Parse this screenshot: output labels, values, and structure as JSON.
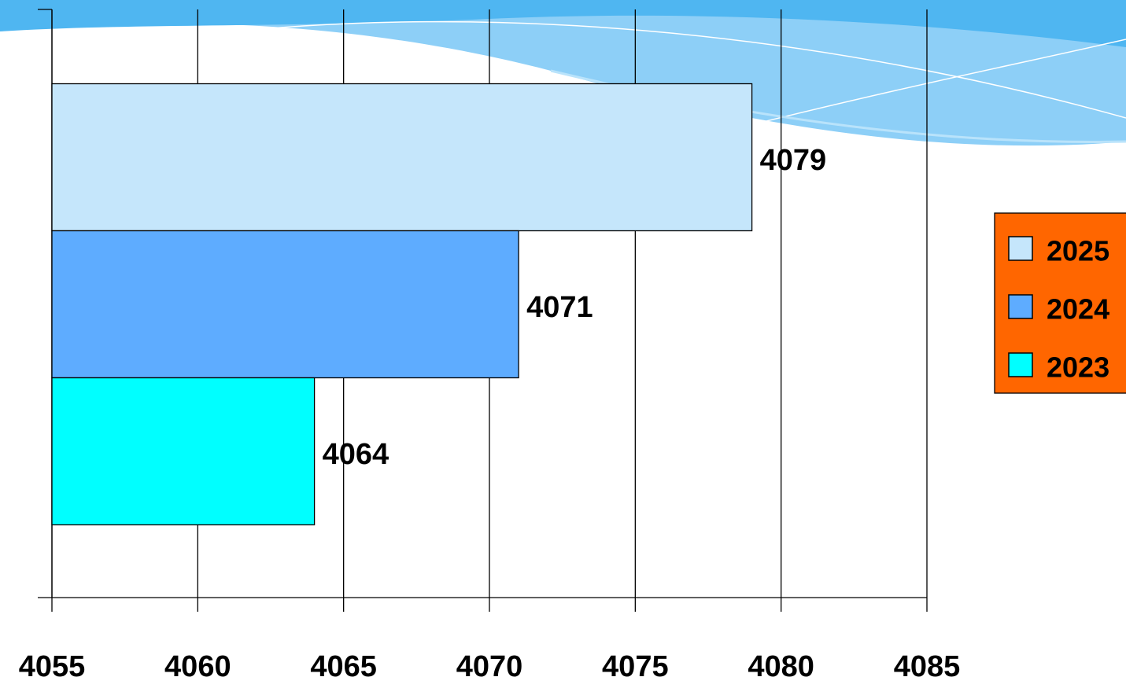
{
  "chart_data": {
    "type": "bar",
    "orientation": "horizontal",
    "categories": [
      null
    ],
    "series": [
      {
        "name": "2025",
        "color": "#c5e6fb",
        "values": [
          4079
        ]
      },
      {
        "name": "2024",
        "color": "#5eacff",
        "values": [
          4071
        ]
      },
      {
        "name": "2023",
        "color": "#00ffff",
        "values": [
          4064
        ]
      }
    ],
    "xlim": [
      4055,
      4085
    ],
    "xticks": [
      4055,
      4060,
      4065,
      4070,
      4075,
      4080,
      4085
    ],
    "grid": true,
    "legend": "right",
    "legend_color": "#ff6600",
    "data_labels": true
  }
}
